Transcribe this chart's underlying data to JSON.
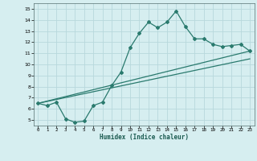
{
  "title": "",
  "xlabel": "Humidex (Indice chaleur)",
  "bg_color": "#d6eef0",
  "grid_color": "#b8d8dc",
  "line_color": "#2a7a6e",
  "xlim": [
    -0.5,
    23.5
  ],
  "ylim": [
    4.5,
    15.5
  ],
  "xticks": [
    0,
    1,
    2,
    3,
    4,
    5,
    6,
    7,
    8,
    9,
    10,
    11,
    12,
    13,
    14,
    15,
    16,
    17,
    18,
    19,
    20,
    21,
    22,
    23
  ],
  "yticks": [
    5,
    6,
    7,
    8,
    9,
    10,
    11,
    12,
    13,
    14,
    15
  ],
  "line1_x": [
    0,
    1,
    2,
    3,
    4,
    5,
    6,
    7,
    8,
    9,
    10,
    11,
    12,
    13,
    14,
    15,
    16,
    17,
    18,
    19,
    20,
    21,
    22,
    23
  ],
  "line1_y": [
    6.5,
    6.3,
    6.6,
    5.1,
    4.8,
    4.9,
    6.3,
    6.6,
    8.1,
    9.3,
    11.5,
    12.8,
    13.8,
    13.3,
    13.8,
    14.8,
    13.4,
    12.3,
    12.3,
    11.8,
    11.6,
    11.7,
    11.8,
    11.2
  ],
  "line2_x": [
    0,
    23
  ],
  "line2_y": [
    6.5,
    11.2
  ],
  "line3_x": [
    0,
    23
  ],
  "line3_y": [
    6.5,
    10.5
  ]
}
